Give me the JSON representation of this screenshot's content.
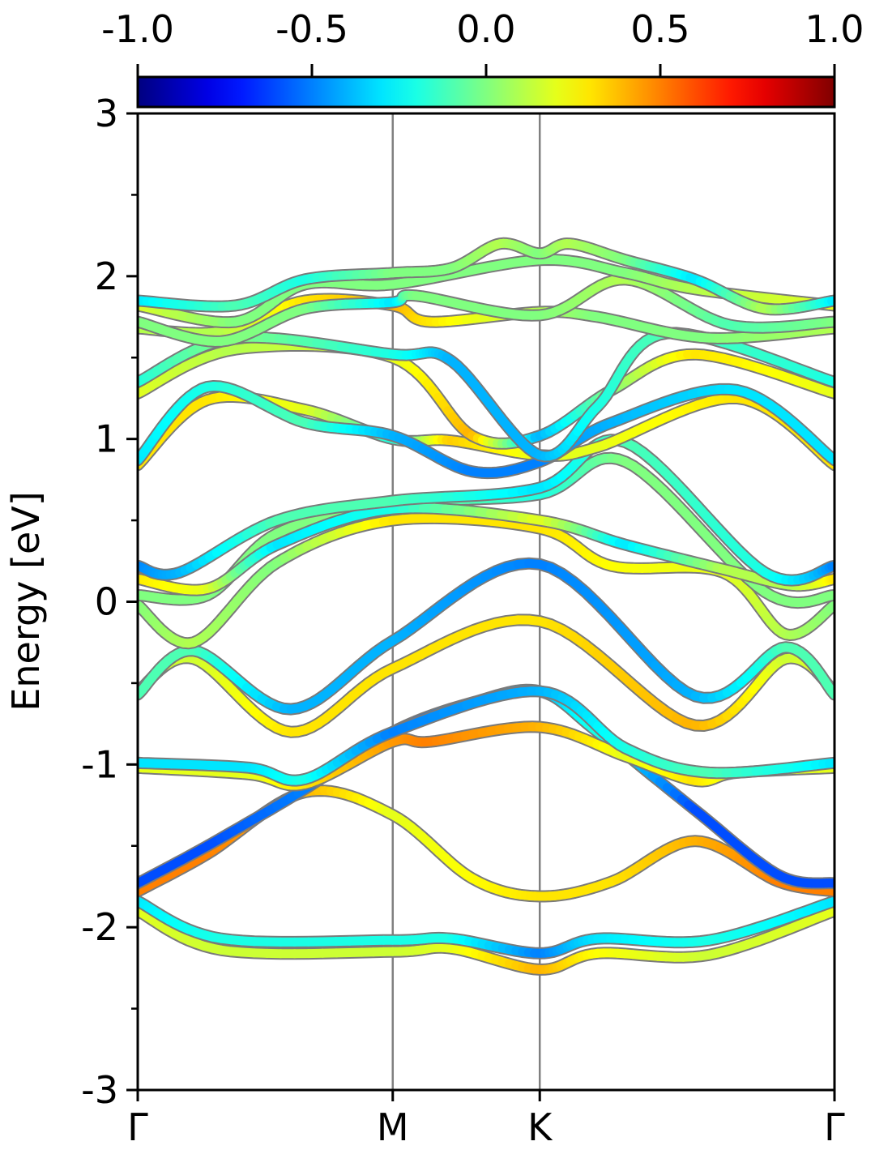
{
  "chart_data": {
    "type": "line",
    "title": "",
    "xlabel": "",
    "ylabel": "Energy [eV]",
    "ylim": [
      -3,
      3
    ],
    "yticks": [
      -3,
      -2,
      -1,
      0,
      1,
      2,
      3
    ],
    "y_tick_labels": [
      "-3",
      "-2",
      "-1",
      "0",
      "1",
      "2",
      "3"
    ],
    "y_minor_ticks": [
      -2.5,
      -1.5,
      -0.5,
      0.5,
      1.5,
      2.5
    ],
    "kpath": {
      "positions": [
        0,
        0.366,
        0.577,
        1.0
      ],
      "labels": [
        "Γ",
        "M",
        "K",
        "Γ"
      ],
      "vertical_lines": [
        0.366,
        0.577
      ]
    },
    "colorbar": {
      "colormap": "jet",
      "range": [
        -1.0,
        1.0
      ],
      "ticks": [
        -1.0,
        -0.5,
        0.0,
        0.5,
        1.0
      ],
      "tick_labels": [
        "-1.0",
        "-0.5",
        "0.0",
        "0.5",
        "1.0"
      ],
      "location": "top"
    },
    "grid": false,
    "series": [
      {
        "points": [
          [
            0,
            -1.9,
            0.2
          ],
          [
            0.12,
            -2.14,
            0.15
          ],
          [
            0.366,
            -2.15,
            0.15
          ],
          [
            0.45,
            -2.13,
            0.2
          ],
          [
            0.577,
            -2.26,
            0.4
          ],
          [
            0.66,
            -2.16,
            0.25
          ],
          [
            0.82,
            -2.17,
            0.15
          ],
          [
            1.0,
            -1.9,
            0.2
          ]
        ]
      },
      {
        "points": [
          [
            0,
            -1.84,
            -0.3
          ],
          [
            0.12,
            -2.07,
            -0.2
          ],
          [
            0.366,
            -2.08,
            -0.2
          ],
          [
            0.45,
            -2.07,
            -0.2
          ],
          [
            0.577,
            -2.16,
            -0.5
          ],
          [
            0.66,
            -2.07,
            -0.3
          ],
          [
            0.82,
            -2.08,
            -0.2
          ],
          [
            1.0,
            -1.84,
            -0.3
          ]
        ]
      },
      {
        "points": [
          [
            0,
            -1.78,
            0.5
          ],
          [
            0.1,
            -1.55,
            0.5
          ],
          [
            0.24,
            -1.17,
            0.4
          ],
          [
            0.366,
            -1.31,
            0.2
          ],
          [
            0.48,
            -1.7,
            0.25
          ],
          [
            0.577,
            -1.81,
            0.3
          ],
          [
            0.68,
            -1.72,
            0.3
          ],
          [
            0.8,
            -1.47,
            0.4
          ],
          [
            0.92,
            -1.72,
            0.5
          ],
          [
            1.0,
            -1.78,
            0.5
          ]
        ]
      },
      {
        "points": [
          [
            0,
            -1.73,
            -0.6
          ],
          [
            0.1,
            -1.5,
            -0.6
          ],
          [
            0.24,
            -1.15,
            -0.5
          ],
          [
            0.366,
            -0.8,
            -0.6
          ],
          [
            0.48,
            -0.62,
            -0.4
          ],
          [
            0.577,
            -0.55,
            -0.4
          ],
          [
            0.66,
            -0.8,
            -0.2
          ],
          [
            0.8,
            -1.28,
            -0.6
          ],
          [
            0.92,
            -1.68,
            -0.6
          ],
          [
            1.0,
            -1.73,
            -0.6
          ]
        ]
      },
      {
        "points": [
          [
            0,
            -1.02,
            0.2
          ],
          [
            0.16,
            -1.06,
            0.2
          ],
          [
            0.24,
            -1.12,
            0.3
          ],
          [
            0.366,
            -0.86,
            0.45
          ],
          [
            0.42,
            -0.86,
            0.5
          ],
          [
            0.577,
            -0.77,
            0.4
          ],
          [
            0.7,
            -0.95,
            0.2
          ],
          [
            0.8,
            -1.1,
            0.3
          ],
          [
            0.86,
            -1.05,
            0.2
          ],
          [
            1.0,
            -1.02,
            0.2
          ]
        ]
      },
      {
        "points": [
          [
            0,
            -0.99,
            -0.3
          ],
          [
            0.16,
            -1.02,
            -0.3
          ],
          [
            0.24,
            -1.09,
            -0.2
          ],
          [
            0.366,
            -0.8,
            -0.5
          ],
          [
            0.577,
            -0.55,
            -0.4
          ],
          [
            0.7,
            -0.9,
            -0.2
          ],
          [
            0.82,
            -1.05,
            -0.1
          ],
          [
            1.0,
            -0.99,
            -0.3
          ]
        ]
      },
      {
        "points": [
          [
            0,
            -0.55,
            0.2
          ],
          [
            0.08,
            -0.35,
            0.15
          ],
          [
            0.22,
            -0.8,
            0.3
          ],
          [
            0.366,
            -0.41,
            0.3
          ],
          [
            0.577,
            -0.12,
            0.3
          ],
          [
            0.8,
            -0.76,
            0.4
          ],
          [
            0.93,
            -0.35,
            0.15
          ],
          [
            1.0,
            -0.55,
            0.2
          ]
        ]
      },
      {
        "points": [
          [
            0,
            -0.57,
            -0.1
          ],
          [
            0.08,
            -0.3,
            -0.1
          ],
          [
            0.22,
            -0.66,
            -0.4
          ],
          [
            0.366,
            -0.24,
            -0.4
          ],
          [
            0.577,
            0.23,
            -0.5
          ],
          [
            0.8,
            -0.58,
            -0.4
          ],
          [
            0.93,
            -0.28,
            -0.1
          ],
          [
            1.0,
            -0.57,
            -0.1
          ]
        ]
      },
      {
        "points": [
          [
            0,
            -0.02,
            0.0
          ],
          [
            0.08,
            -0.25,
            0.1
          ],
          [
            0.2,
            0.24,
            0.0
          ],
          [
            0.366,
            0.5,
            0.3
          ],
          [
            0.577,
            0.45,
            0.3
          ],
          [
            0.68,
            0.22,
            0.25
          ],
          [
            0.84,
            0.18,
            0.2
          ],
          [
            0.93,
            -0.2,
            0.1
          ],
          [
            1.0,
            -0.02,
            0.0
          ]
        ]
      },
      {
        "points": [
          [
            0,
            0.04,
            0.0
          ],
          [
            0.1,
            0.04,
            0.0
          ],
          [
            0.2,
            0.42,
            0.0
          ],
          [
            0.366,
            0.6,
            0.0
          ],
          [
            0.577,
            0.66,
            -0.2
          ],
          [
            0.7,
            0.86,
            0.0
          ],
          [
            0.9,
            0.06,
            0.0
          ],
          [
            1.0,
            0.04,
            0.0
          ]
        ]
      },
      {
        "points": [
          [
            0,
            0.14,
            0.3
          ],
          [
            0.1,
            0.08,
            0.2
          ],
          [
            0.2,
            0.35,
            -0.3
          ],
          [
            0.366,
            0.57,
            -0.2
          ],
          [
            0.577,
            0.5,
            0.2
          ],
          [
            0.7,
            0.35,
            -0.3
          ],
          [
            0.84,
            0.2,
            0.1
          ],
          [
            0.94,
            0.1,
            0.1
          ],
          [
            1.0,
            0.14,
            0.3
          ]
        ]
      },
      {
        "points": [
          [
            0,
            0.22,
            -0.5
          ],
          [
            0.06,
            0.18,
            -0.4
          ],
          [
            0.2,
            0.5,
            -0.1
          ],
          [
            0.366,
            0.62,
            -0.1
          ],
          [
            0.577,
            0.7,
            -0.3
          ],
          [
            0.7,
            0.98,
            -0.1
          ],
          [
            0.9,
            0.18,
            -0.2
          ],
          [
            1.0,
            0.22,
            -0.5
          ]
        ]
      },
      {
        "points": [
          [
            0,
            0.84,
            0.3
          ],
          [
            0.1,
            1.24,
            0.3
          ],
          [
            0.24,
            1.18,
            0.2
          ],
          [
            0.366,
            1.0,
            -0.2
          ],
          [
            0.45,
            0.99,
            0.35
          ],
          [
            0.577,
            0.9,
            0.2
          ],
          [
            0.66,
            0.95,
            0.2
          ],
          [
            0.86,
            1.25,
            0.3
          ],
          [
            1.0,
            0.84,
            0.3
          ]
        ]
      },
      {
        "points": [
          [
            0,
            0.87,
            -0.3
          ],
          [
            0.1,
            1.32,
            -0.2
          ],
          [
            0.24,
            1.1,
            -0.1
          ],
          [
            0.366,
            1.02,
            -0.4
          ],
          [
            0.48,
            0.8,
            -0.5
          ],
          [
            0.577,
            0.86,
            -0.5
          ],
          [
            0.68,
            1.1,
            -0.4
          ],
          [
            0.86,
            1.3,
            -0.3
          ],
          [
            1.0,
            0.87,
            -0.3
          ]
        ]
      },
      {
        "points": [
          [
            0,
            1.28,
            0.2
          ],
          [
            0.14,
            1.55,
            0.1
          ],
          [
            0.366,
            1.5,
            0.2
          ],
          [
            0.48,
            1.02,
            0.4
          ],
          [
            0.577,
            1.02,
            -0.4
          ],
          [
            0.68,
            1.3,
            0.0
          ],
          [
            0.8,
            1.52,
            0.3
          ],
          [
            1.0,
            1.28,
            0.2
          ]
        ]
      },
      {
        "points": [
          [
            0,
            1.35,
            -0.2
          ],
          [
            0.14,
            1.62,
            0.0
          ],
          [
            0.366,
            1.52,
            -0.2
          ],
          [
            0.45,
            1.48,
            -0.4
          ],
          [
            0.577,
            0.9,
            -0.4
          ],
          [
            0.66,
            1.2,
            -0.2
          ],
          [
            0.76,
            1.65,
            -0.1
          ],
          [
            1.0,
            1.35,
            -0.2
          ]
        ]
      },
      {
        "points": [
          [
            0,
            1.68,
            0.1
          ],
          [
            0.12,
            1.66,
            0.1
          ],
          [
            0.24,
            1.85,
            0.3
          ],
          [
            0.366,
            1.82,
            0.4
          ],
          [
            0.42,
            1.72,
            0.3
          ],
          [
            0.577,
            1.78,
            0.1
          ],
          [
            0.66,
            1.75,
            0.0
          ],
          [
            0.82,
            1.62,
            0.0
          ],
          [
            1.0,
            1.68,
            0.1
          ]
        ]
      },
      {
        "points": [
          [
            0,
            1.72,
            0.0
          ],
          [
            0.12,
            1.6,
            0.0
          ],
          [
            0.24,
            1.8,
            0.0
          ],
          [
            0.366,
            1.84,
            -0.3
          ],
          [
            0.4,
            1.88,
            0.0
          ],
          [
            0.577,
            1.76,
            0.0
          ],
          [
            0.7,
            1.98,
            0.1
          ],
          [
            0.85,
            1.7,
            -0.1
          ],
          [
            1.0,
            1.72,
            0.0
          ]
        ]
      },
      {
        "points": [
          [
            0,
            1.82,
            0.2
          ],
          [
            0.14,
            1.72,
            0.0
          ],
          [
            0.24,
            1.95,
            0.0
          ],
          [
            0.366,
            1.95,
            0.0
          ],
          [
            0.577,
            2.1,
            0.0
          ],
          [
            0.7,
            2.02,
            0.0
          ],
          [
            0.8,
            1.92,
            0.1
          ],
          [
            1.0,
            1.82,
            0.2
          ]
        ]
      },
      {
        "points": [
          [
            0,
            1.85,
            -0.3
          ],
          [
            0.14,
            1.82,
            -0.1
          ],
          [
            0.24,
            1.98,
            -0.2
          ],
          [
            0.366,
            2.02,
            0.0
          ],
          [
            0.45,
            2.05,
            0.0
          ],
          [
            0.52,
            2.2,
            0.1
          ],
          [
            0.577,
            2.14,
            0.0
          ],
          [
            0.62,
            2.2,
            0.1
          ],
          [
            0.7,
            2.1,
            0.0
          ],
          [
            0.8,
            1.98,
            -0.3
          ],
          [
            0.9,
            1.8,
            0.1
          ],
          [
            1.0,
            1.85,
            -0.3
          ]
        ]
      }
    ]
  }
}
